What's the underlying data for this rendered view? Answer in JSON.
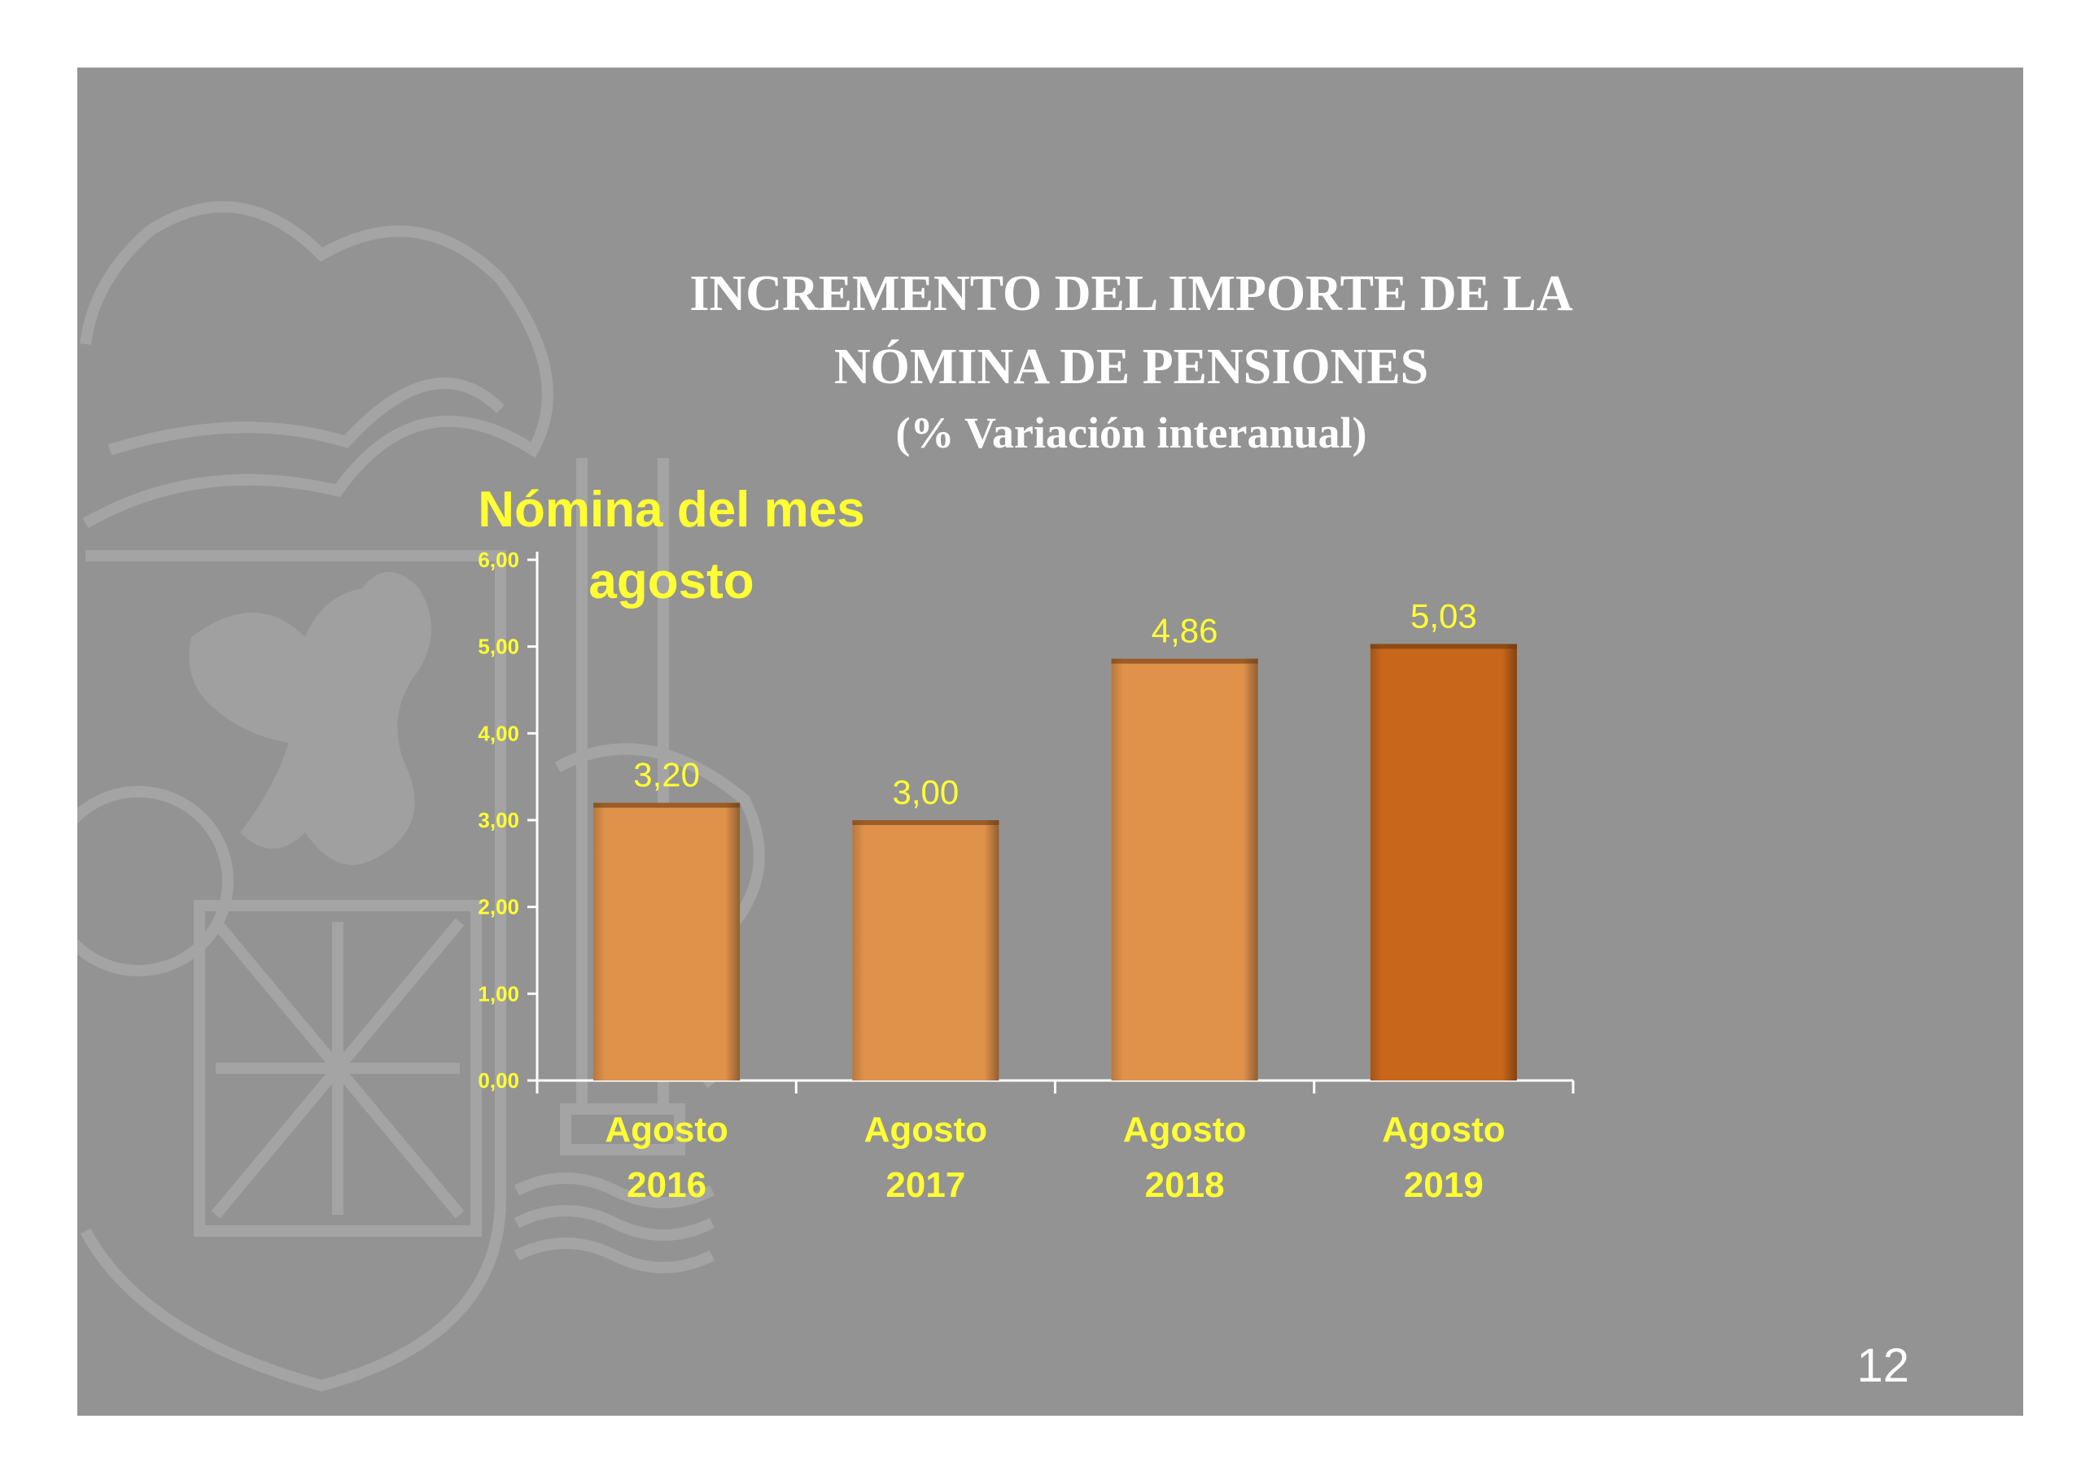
{
  "slide": {
    "title_line1": "INCREMENTO DEL IMPORTE DE LA",
    "title_line2": "NÓMINA DE PENSIONES",
    "title_line3": "(% Variación interanual)",
    "subtitle_line1": "Nómina del mes",
    "subtitle_line2": "agosto",
    "page_number": "12"
  },
  "colors": {
    "background": "#939393",
    "bar": "#E0924B",
    "bar_highlight": "#C8671C",
    "label": "#FFFF33",
    "title": "#FFFFFF"
  },
  "chart_data": {
    "type": "bar",
    "categories": [
      [
        "Agosto",
        "2016"
      ],
      [
        "Agosto",
        "2017"
      ],
      [
        "Agosto",
        "2018"
      ],
      [
        "Agosto",
        "2019"
      ]
    ],
    "values": [
      3.2,
      3.0,
      4.86,
      5.03
    ],
    "data_labels": [
      "3,20",
      "3,00",
      "4,86",
      "5,03"
    ],
    "highlight_index": 3,
    "ylim": [
      0,
      6
    ],
    "yticks": [
      "0,00",
      "1,00",
      "2,00",
      "3,00",
      "4,00",
      "5,00",
      "6,00"
    ],
    "grid": false,
    "xlabel": "",
    "ylabel": ""
  }
}
